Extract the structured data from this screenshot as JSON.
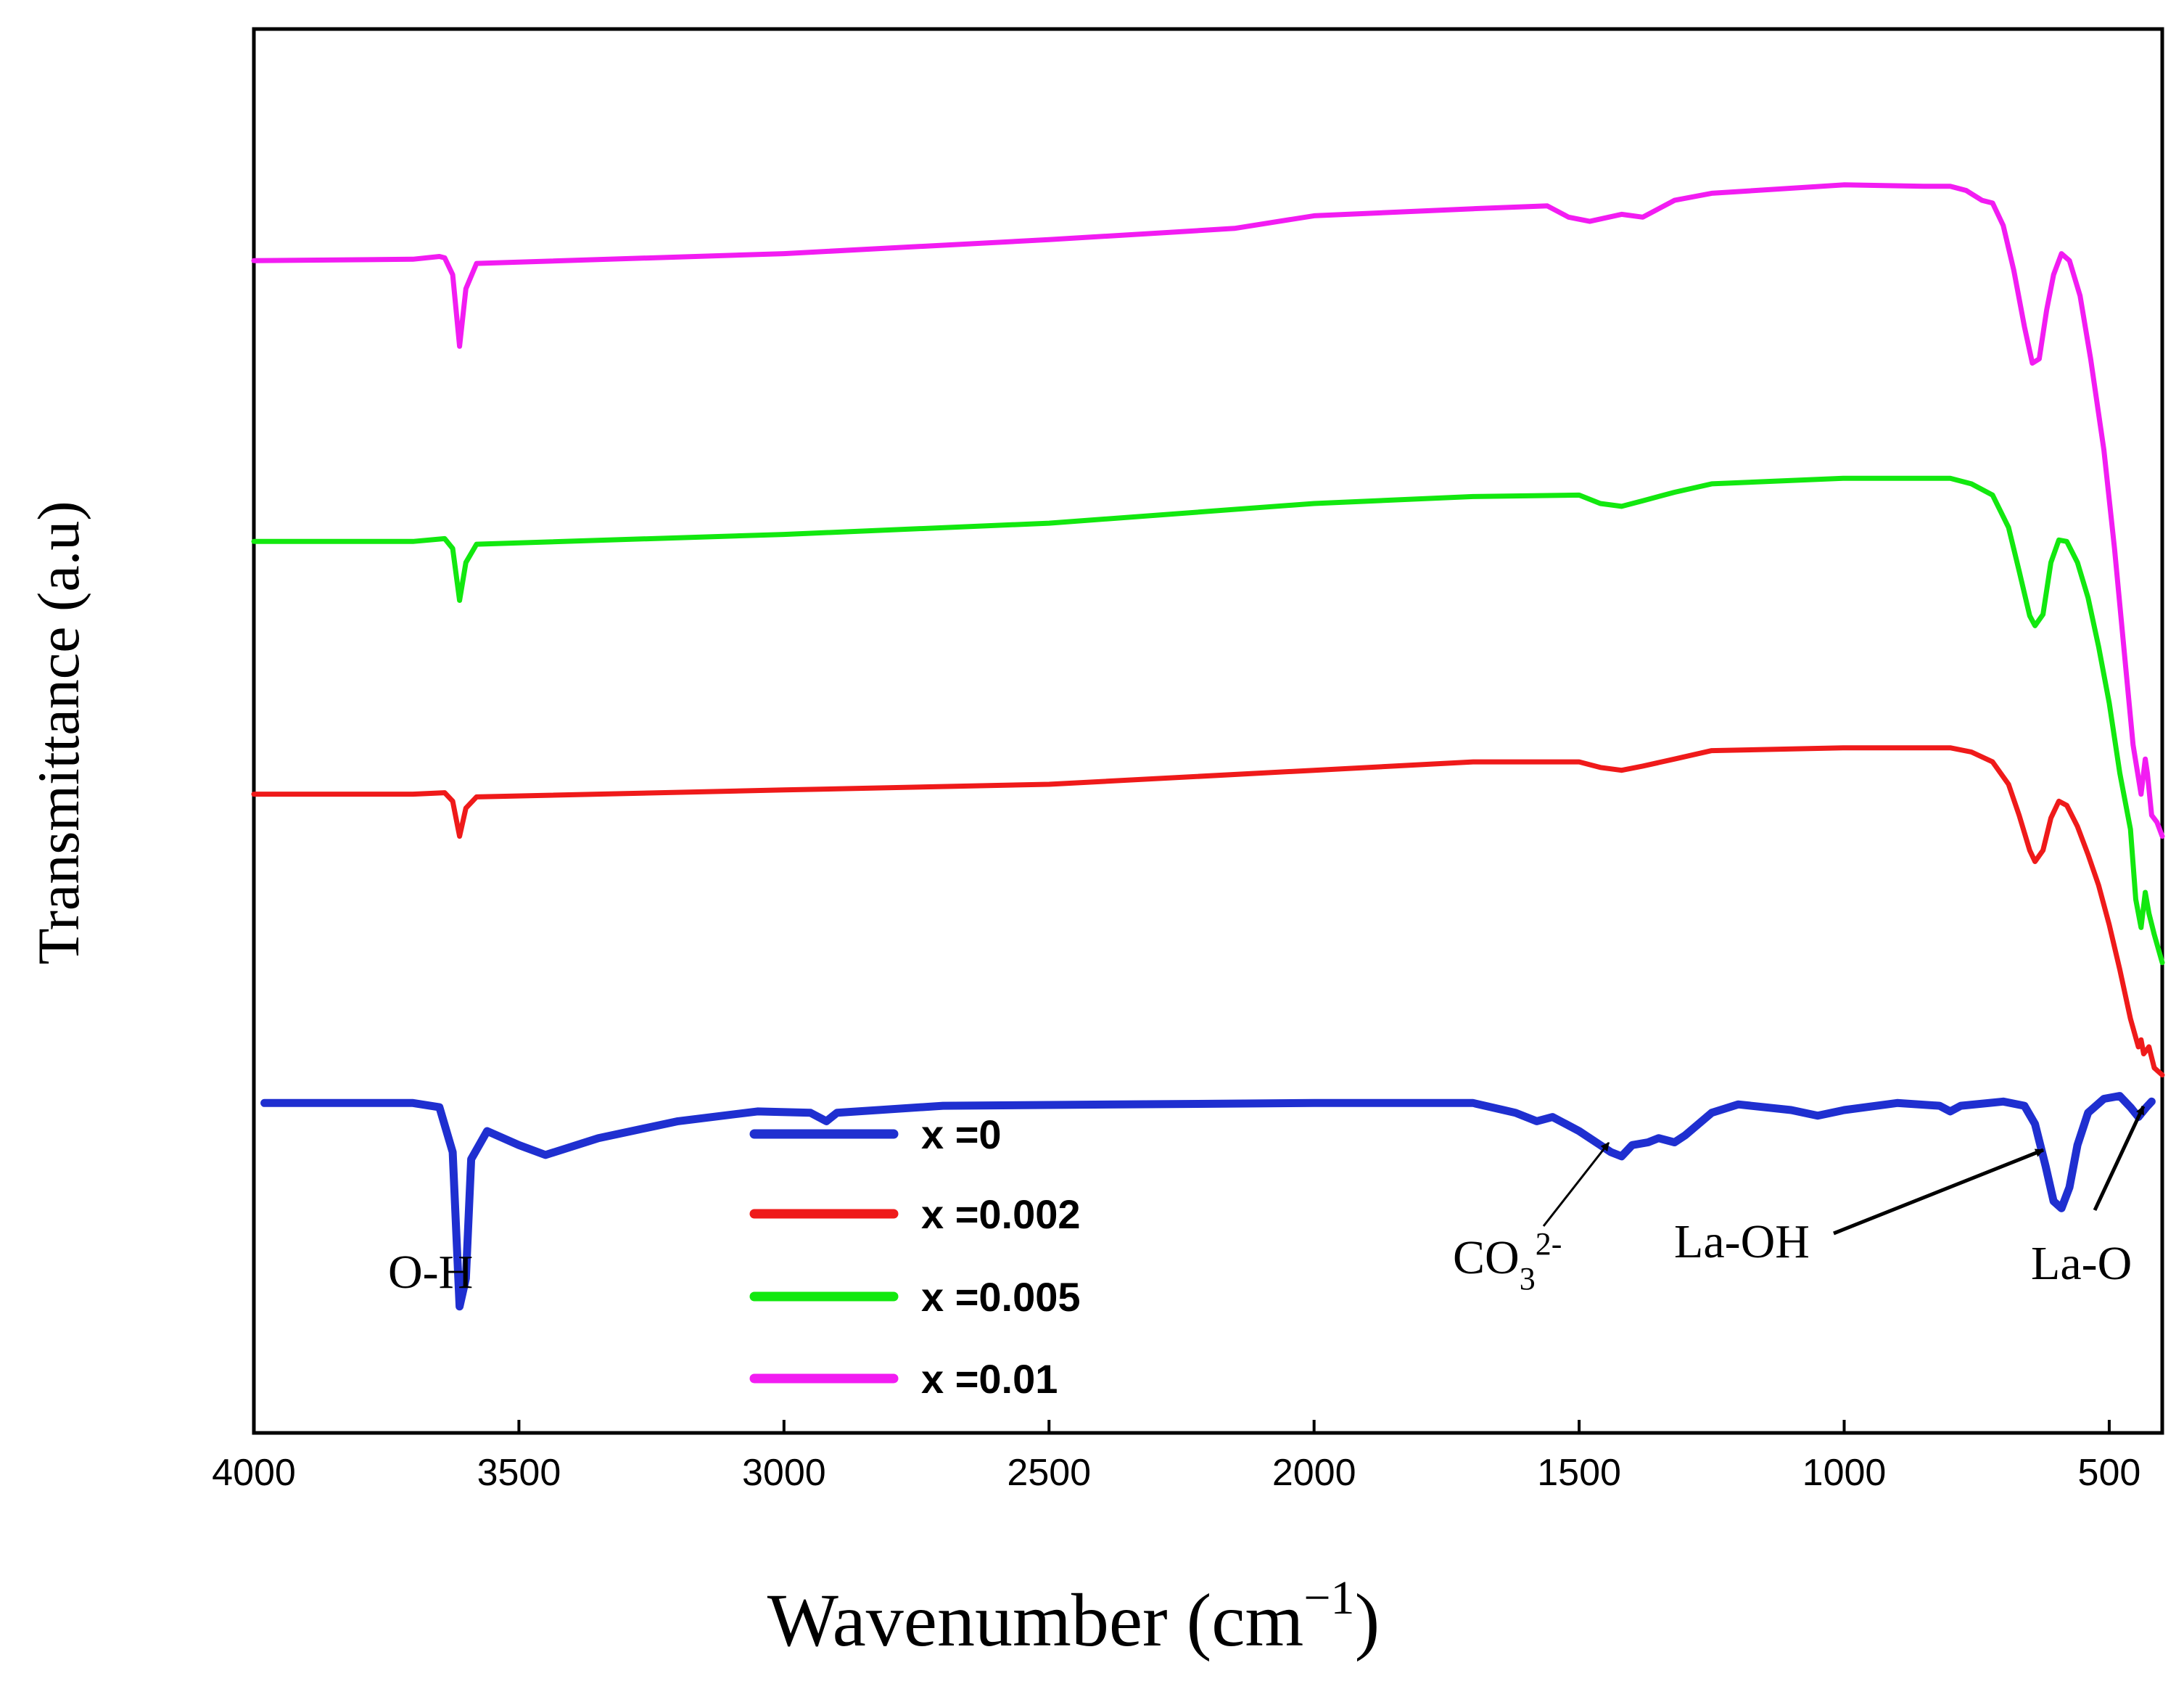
{
  "chart_data": {
    "type": "line",
    "title": "",
    "xlabel": "Wavenumber (cm",
    "xlabel_sup": "−1",
    "xlabel_close": ")",
    "ylabel": "Transmittance (a.u)",
    "xlim": [
      4000,
      400
    ],
    "xticks": [
      4000,
      3500,
      3000,
      2500,
      2000,
      1500,
      1000,
      500
    ],
    "yticks_shown": false,
    "legend_position": "center-bottom",
    "colors": {
      "x0": "#1f2fd0",
      "x0002": "#ef1a1a",
      "x0005": "#12e80f",
      "x001": "#f21cf2"
    },
    "series": [
      {
        "key": "x0",
        "name": "x =0",
        "color": "#1f2fd0",
        "baseline": 0.235,
        "points": [
          [
            3980,
            0.235
          ],
          [
            3700,
            0.235
          ],
          [
            3650,
            0.232
          ],
          [
            3625,
            0.2
          ],
          [
            3612,
            0.09
          ],
          [
            3600,
            0.11
          ],
          [
            3590,
            0.195
          ],
          [
            3560,
            0.215
          ],
          [
            3500,
            0.205
          ],
          [
            3450,
            0.198
          ],
          [
            3350,
            0.21
          ],
          [
            3200,
            0.222
          ],
          [
            3050,
            0.229
          ],
          [
            2950,
            0.228
          ],
          [
            2920,
            0.222
          ],
          [
            2900,
            0.228
          ],
          [
            2700,
            0.233
          ],
          [
            2000,
            0.235
          ],
          [
            1700,
            0.235
          ],
          [
            1620,
            0.228
          ],
          [
            1580,
            0.222
          ],
          [
            1550,
            0.225
          ],
          [
            1500,
            0.215
          ],
          [
            1460,
            0.205
          ],
          [
            1440,
            0.2
          ],
          [
            1420,
            0.197
          ],
          [
            1400,
            0.205
          ],
          [
            1370,
            0.207
          ],
          [
            1350,
            0.21
          ],
          [
            1320,
            0.207
          ],
          [
            1300,
            0.212
          ],
          [
            1250,
            0.228
          ],
          [
            1200,
            0.234
          ],
          [
            1100,
            0.23
          ],
          [
            1050,
            0.226
          ],
          [
            1000,
            0.23
          ],
          [
            900,
            0.235
          ],
          [
            820,
            0.233
          ],
          [
            800,
            0.229
          ],
          [
            780,
            0.233
          ],
          [
            700,
            0.236
          ],
          [
            660,
            0.233
          ],
          [
            640,
            0.22
          ],
          [
            620,
            0.19
          ],
          [
            605,
            0.165
          ],
          [
            590,
            0.16
          ],
          [
            575,
            0.175
          ],
          [
            560,
            0.205
          ],
          [
            540,
            0.228
          ],
          [
            510,
            0.238
          ],
          [
            480,
            0.24
          ],
          [
            460,
            0.232
          ],
          [
            445,
            0.225
          ],
          [
            430,
            0.232
          ],
          [
            420,
            0.236
          ]
        ]
      },
      {
        "key": "x0002",
        "name": "x =0.002",
        "color": "#ef1a1a",
        "baseline": 0.455,
        "points": [
          [
            4000,
            0.455
          ],
          [
            3700,
            0.455
          ],
          [
            3640,
            0.456
          ],
          [
            3625,
            0.45
          ],
          [
            3612,
            0.425
          ],
          [
            3600,
            0.445
          ],
          [
            3580,
            0.453
          ],
          [
            3000,
            0.458
          ],
          [
            2500,
            0.462
          ],
          [
            2000,
            0.472
          ],
          [
            1700,
            0.478
          ],
          [
            1500,
            0.478
          ],
          [
            1460,
            0.474
          ],
          [
            1420,
            0.472
          ],
          [
            1380,
            0.475
          ],
          [
            1320,
            0.48
          ],
          [
            1250,
            0.486
          ],
          [
            1000,
            0.488
          ],
          [
            800,
            0.488
          ],
          [
            760,
            0.485
          ],
          [
            720,
            0.478
          ],
          [
            690,
            0.462
          ],
          [
            670,
            0.44
          ],
          [
            650,
            0.415
          ],
          [
            640,
            0.407
          ],
          [
            625,
            0.415
          ],
          [
            610,
            0.438
          ],
          [
            595,
            0.45
          ],
          [
            580,
            0.447
          ],
          [
            560,
            0.432
          ],
          [
            540,
            0.412
          ],
          [
            520,
            0.39
          ],
          [
            500,
            0.362
          ],
          [
            480,
            0.33
          ],
          [
            460,
            0.295
          ],
          [
            445,
            0.275
          ],
          [
            440,
            0.28
          ],
          [
            435,
            0.27
          ],
          [
            425,
            0.275
          ],
          [
            415,
            0.26
          ],
          [
            400,
            0.255
          ]
        ]
      },
      {
        "key": "x0005",
        "name": "x =0.005",
        "color": "#12e80f",
        "baseline": 0.635,
        "points": [
          [
            4000,
            0.635
          ],
          [
            3700,
            0.635
          ],
          [
            3640,
            0.637
          ],
          [
            3625,
            0.63
          ],
          [
            3612,
            0.593
          ],
          [
            3600,
            0.62
          ],
          [
            3580,
            0.633
          ],
          [
            3000,
            0.64
          ],
          [
            2500,
            0.648
          ],
          [
            2000,
            0.662
          ],
          [
            1700,
            0.667
          ],
          [
            1500,
            0.668
          ],
          [
            1460,
            0.662
          ],
          [
            1420,
            0.66
          ],
          [
            1380,
            0.664
          ],
          [
            1320,
            0.67
          ],
          [
            1250,
            0.676
          ],
          [
            1000,
            0.68
          ],
          [
            800,
            0.68
          ],
          [
            760,
            0.676
          ],
          [
            720,
            0.668
          ],
          [
            690,
            0.645
          ],
          [
            670,
            0.614
          ],
          [
            650,
            0.582
          ],
          [
            640,
            0.575
          ],
          [
            625,
            0.583
          ],
          [
            610,
            0.62
          ],
          [
            595,
            0.636
          ],
          [
            580,
            0.635
          ],
          [
            560,
            0.62
          ],
          [
            540,
            0.595
          ],
          [
            520,
            0.56
          ],
          [
            500,
            0.52
          ],
          [
            480,
            0.47
          ],
          [
            460,
            0.43
          ],
          [
            450,
            0.38
          ],
          [
            440,
            0.36
          ],
          [
            432,
            0.385
          ],
          [
            425,
            0.37
          ],
          [
            415,
            0.355
          ],
          [
            400,
            0.335
          ]
        ]
      },
      {
        "key": "x001",
        "name": "x =0.01",
        "color": "#f21cf2",
        "baseline": 0.835,
        "points": [
          [
            4000,
            0.835
          ],
          [
            3700,
            0.836
          ],
          [
            3650,
            0.838
          ],
          [
            3640,
            0.837
          ],
          [
            3625,
            0.825
          ],
          [
            3612,
            0.774
          ],
          [
            3600,
            0.815
          ],
          [
            3580,
            0.833
          ],
          [
            3000,
            0.84
          ],
          [
            2500,
            0.85
          ],
          [
            2150,
            0.858
          ],
          [
            2000,
            0.867
          ],
          [
            1700,
            0.872
          ],
          [
            1560,
            0.874
          ],
          [
            1520,
            0.866
          ],
          [
            1480,
            0.863
          ],
          [
            1420,
            0.868
          ],
          [
            1380,
            0.866
          ],
          [
            1320,
            0.878
          ],
          [
            1250,
            0.883
          ],
          [
            1000,
            0.889
          ],
          [
            850,
            0.888
          ],
          [
            800,
            0.888
          ],
          [
            770,
            0.885
          ],
          [
            740,
            0.878
          ],
          [
            720,
            0.876
          ],
          [
            700,
            0.86
          ],
          [
            680,
            0.828
          ],
          [
            660,
            0.788
          ],
          [
            645,
            0.762
          ],
          [
            632,
            0.765
          ],
          [
            618,
            0.8
          ],
          [
            605,
            0.825
          ],
          [
            590,
            0.84
          ],
          [
            575,
            0.835
          ],
          [
            555,
            0.81
          ],
          [
            535,
            0.765
          ],
          [
            510,
            0.7
          ],
          [
            490,
            0.63
          ],
          [
            470,
            0.55
          ],
          [
            455,
            0.49
          ],
          [
            440,
            0.455
          ],
          [
            432,
            0.48
          ],
          [
            428,
            0.47
          ],
          [
            420,
            0.44
          ],
          [
            410,
            0.435
          ],
          [
            400,
            0.425
          ]
        ]
      }
    ],
    "annotations": [
      {
        "key": "oh",
        "text": "O-H",
        "wavenumber": 3610
      },
      {
        "key": "co3",
        "text_main": "CO",
        "text_sub": "3",
        "text_sup": "2-",
        "wavenumber": 1440
      },
      {
        "key": "laoh",
        "text": "La-OH",
        "wavenumber": 600
      },
      {
        "key": "lao",
        "text": "La-O",
        "wavenumber": 440
      }
    ]
  }
}
